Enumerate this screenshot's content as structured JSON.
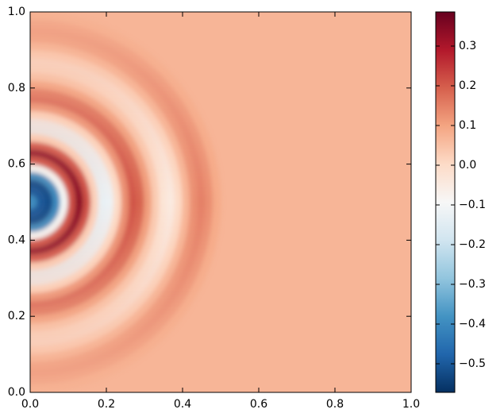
{
  "chart_data": {
    "type": "heatmap",
    "colormap": "RdBu_r",
    "xlim": [
      0,
      1
    ],
    "ylim": [
      0,
      1
    ],
    "xticks": [
      {
        "value": 0,
        "label": "0.0"
      },
      0.2,
      0.4,
      0.6,
      0.8,
      {
        "value": 1,
        "label": "1.0"
      }
    ],
    "yticks": [
      {
        "value": 0,
        "label": "0.0"
      },
      0.2,
      0.4,
      0.6,
      0.8,
      {
        "value": 1,
        "label": "1.0"
      }
    ],
    "clim": [
      -0.572,
      0.386
    ],
    "cticks": [
      {
        "value": -0.5,
        "label": "−0.5"
      },
      {
        "value": -0.4,
        "label": "−0.4"
      },
      {
        "value": -0.3,
        "label": "−0.3"
      },
      {
        "value": -0.2,
        "label": "−0.2"
      },
      {
        "value": -0.1,
        "label": "−0.1"
      },
      {
        "value": 0,
        "label": "0.0"
      },
      0.1,
      0.2,
      0.3
    ],
    "field": {
      "center_x": 0,
      "center_y": 0.5,
      "background": 0.07,
      "radii": [
        0.01,
        0.03,
        0.05,
        0.07,
        0.09,
        0.11,
        0.13,
        0.15,
        0.17,
        0.19,
        0.21,
        0.23,
        0.25,
        0.27,
        0.29,
        0.31,
        0.33,
        0.35,
        0.37,
        0.39,
        0.41,
        0.43,
        0.45,
        0.47,
        0.49
      ],
      "values": [
        -0.4,
        -0.5,
        -0.52,
        -0.4,
        -0.1,
        0.22,
        0.34,
        0.22,
        0.02,
        -0.13,
        -0.12,
        0.0,
        0.13,
        0.21,
        0.19,
        0.11,
        0.03,
        -0.03,
        -0.05,
        0.0,
        0.07,
        0.13,
        0.15,
        0.13,
        0.09
      ]
    }
  }
}
